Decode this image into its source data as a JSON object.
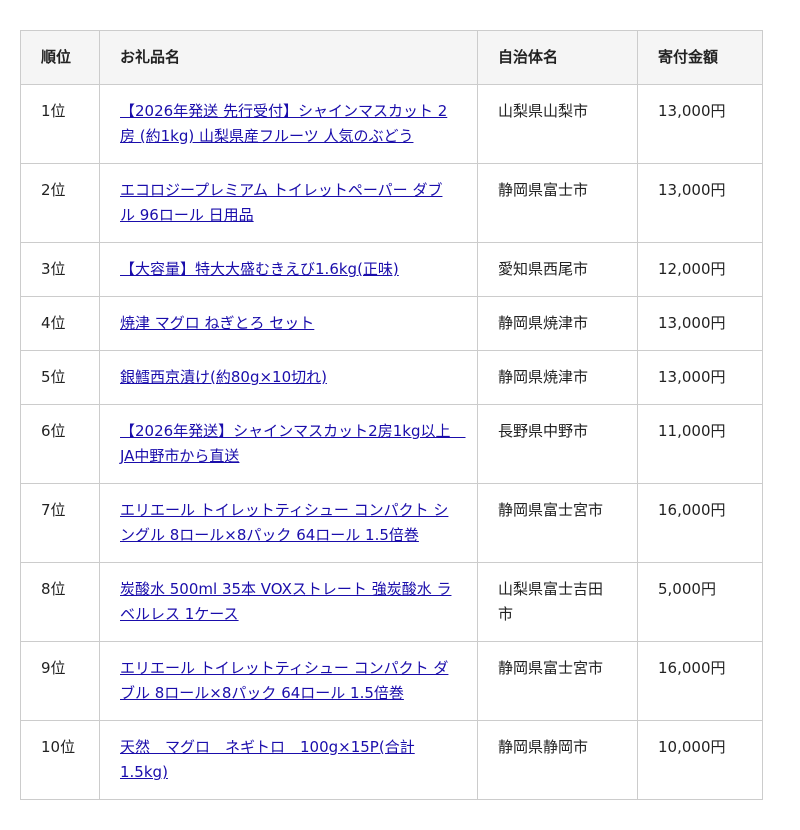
{
  "table": {
    "headers": [
      "順位",
      "お礼品名",
      "自治体名",
      "寄付金額"
    ],
    "rows": [
      {
        "rank": "1位",
        "name": "【2026年発送 先行受付】シャインマスカット 2房 (約1kg) 山梨県産フルーツ 人気のぶどう",
        "municipality": "山梨県山梨市",
        "amount": "13,000円"
      },
      {
        "rank": "2位",
        "name": "エコロジープレミアム トイレットペーパー ダブル 96ロール 日用品",
        "municipality": "静岡県富士市",
        "amount": "13,000円"
      },
      {
        "rank": "3位",
        "name": "【大容量】特大大盛むきえび1.6kg(正味)",
        "municipality": "愛知県西尾市",
        "amount": "12,000円"
      },
      {
        "rank": "4位",
        "name": "焼津 マグロ ねぎとろ セット",
        "municipality": "静岡県焼津市",
        "amount": "13,000円"
      },
      {
        "rank": "5位",
        "name": "銀鱈西京漬け(約80g×10切れ)",
        "municipality": "静岡県焼津市",
        "amount": "13,000円"
      },
      {
        "rank": "6位",
        "name": "【2026年発送】シャインマスカット2房1kg以上　JA中野市から直送",
        "municipality": "長野県中野市",
        "amount": "11,000円"
      },
      {
        "rank": "7位",
        "name": "エリエール トイレットティシュー コンパクト シングル 8ロール×8パック 64ロール 1.5倍巻",
        "municipality": "静岡県富士宮市",
        "amount": "16,000円"
      },
      {
        "rank": "8位",
        "name": "炭酸水 500ml 35本 VOXストレート 強炭酸水 ラベルレス 1ケース",
        "municipality": "山梨県富士吉田市",
        "amount": "5,000円"
      },
      {
        "rank": "9位",
        "name": "エリエール トイレットティシュー コンパクト ダブル 8ロール×8パック 64ロール 1.5倍巻",
        "municipality": "静岡県富士宮市",
        "amount": "16,000円"
      },
      {
        "rank": "10位",
        "name": "天然　マグロ　ネギトロ　100g×15P(合計1.5kg)",
        "municipality": "静岡県静岡市",
        "amount": "10,000円"
      }
    ]
  },
  "colors": {
    "link": "#1a0dab",
    "header_bg": "#f5f5f5",
    "border": "#cccccc"
  }
}
